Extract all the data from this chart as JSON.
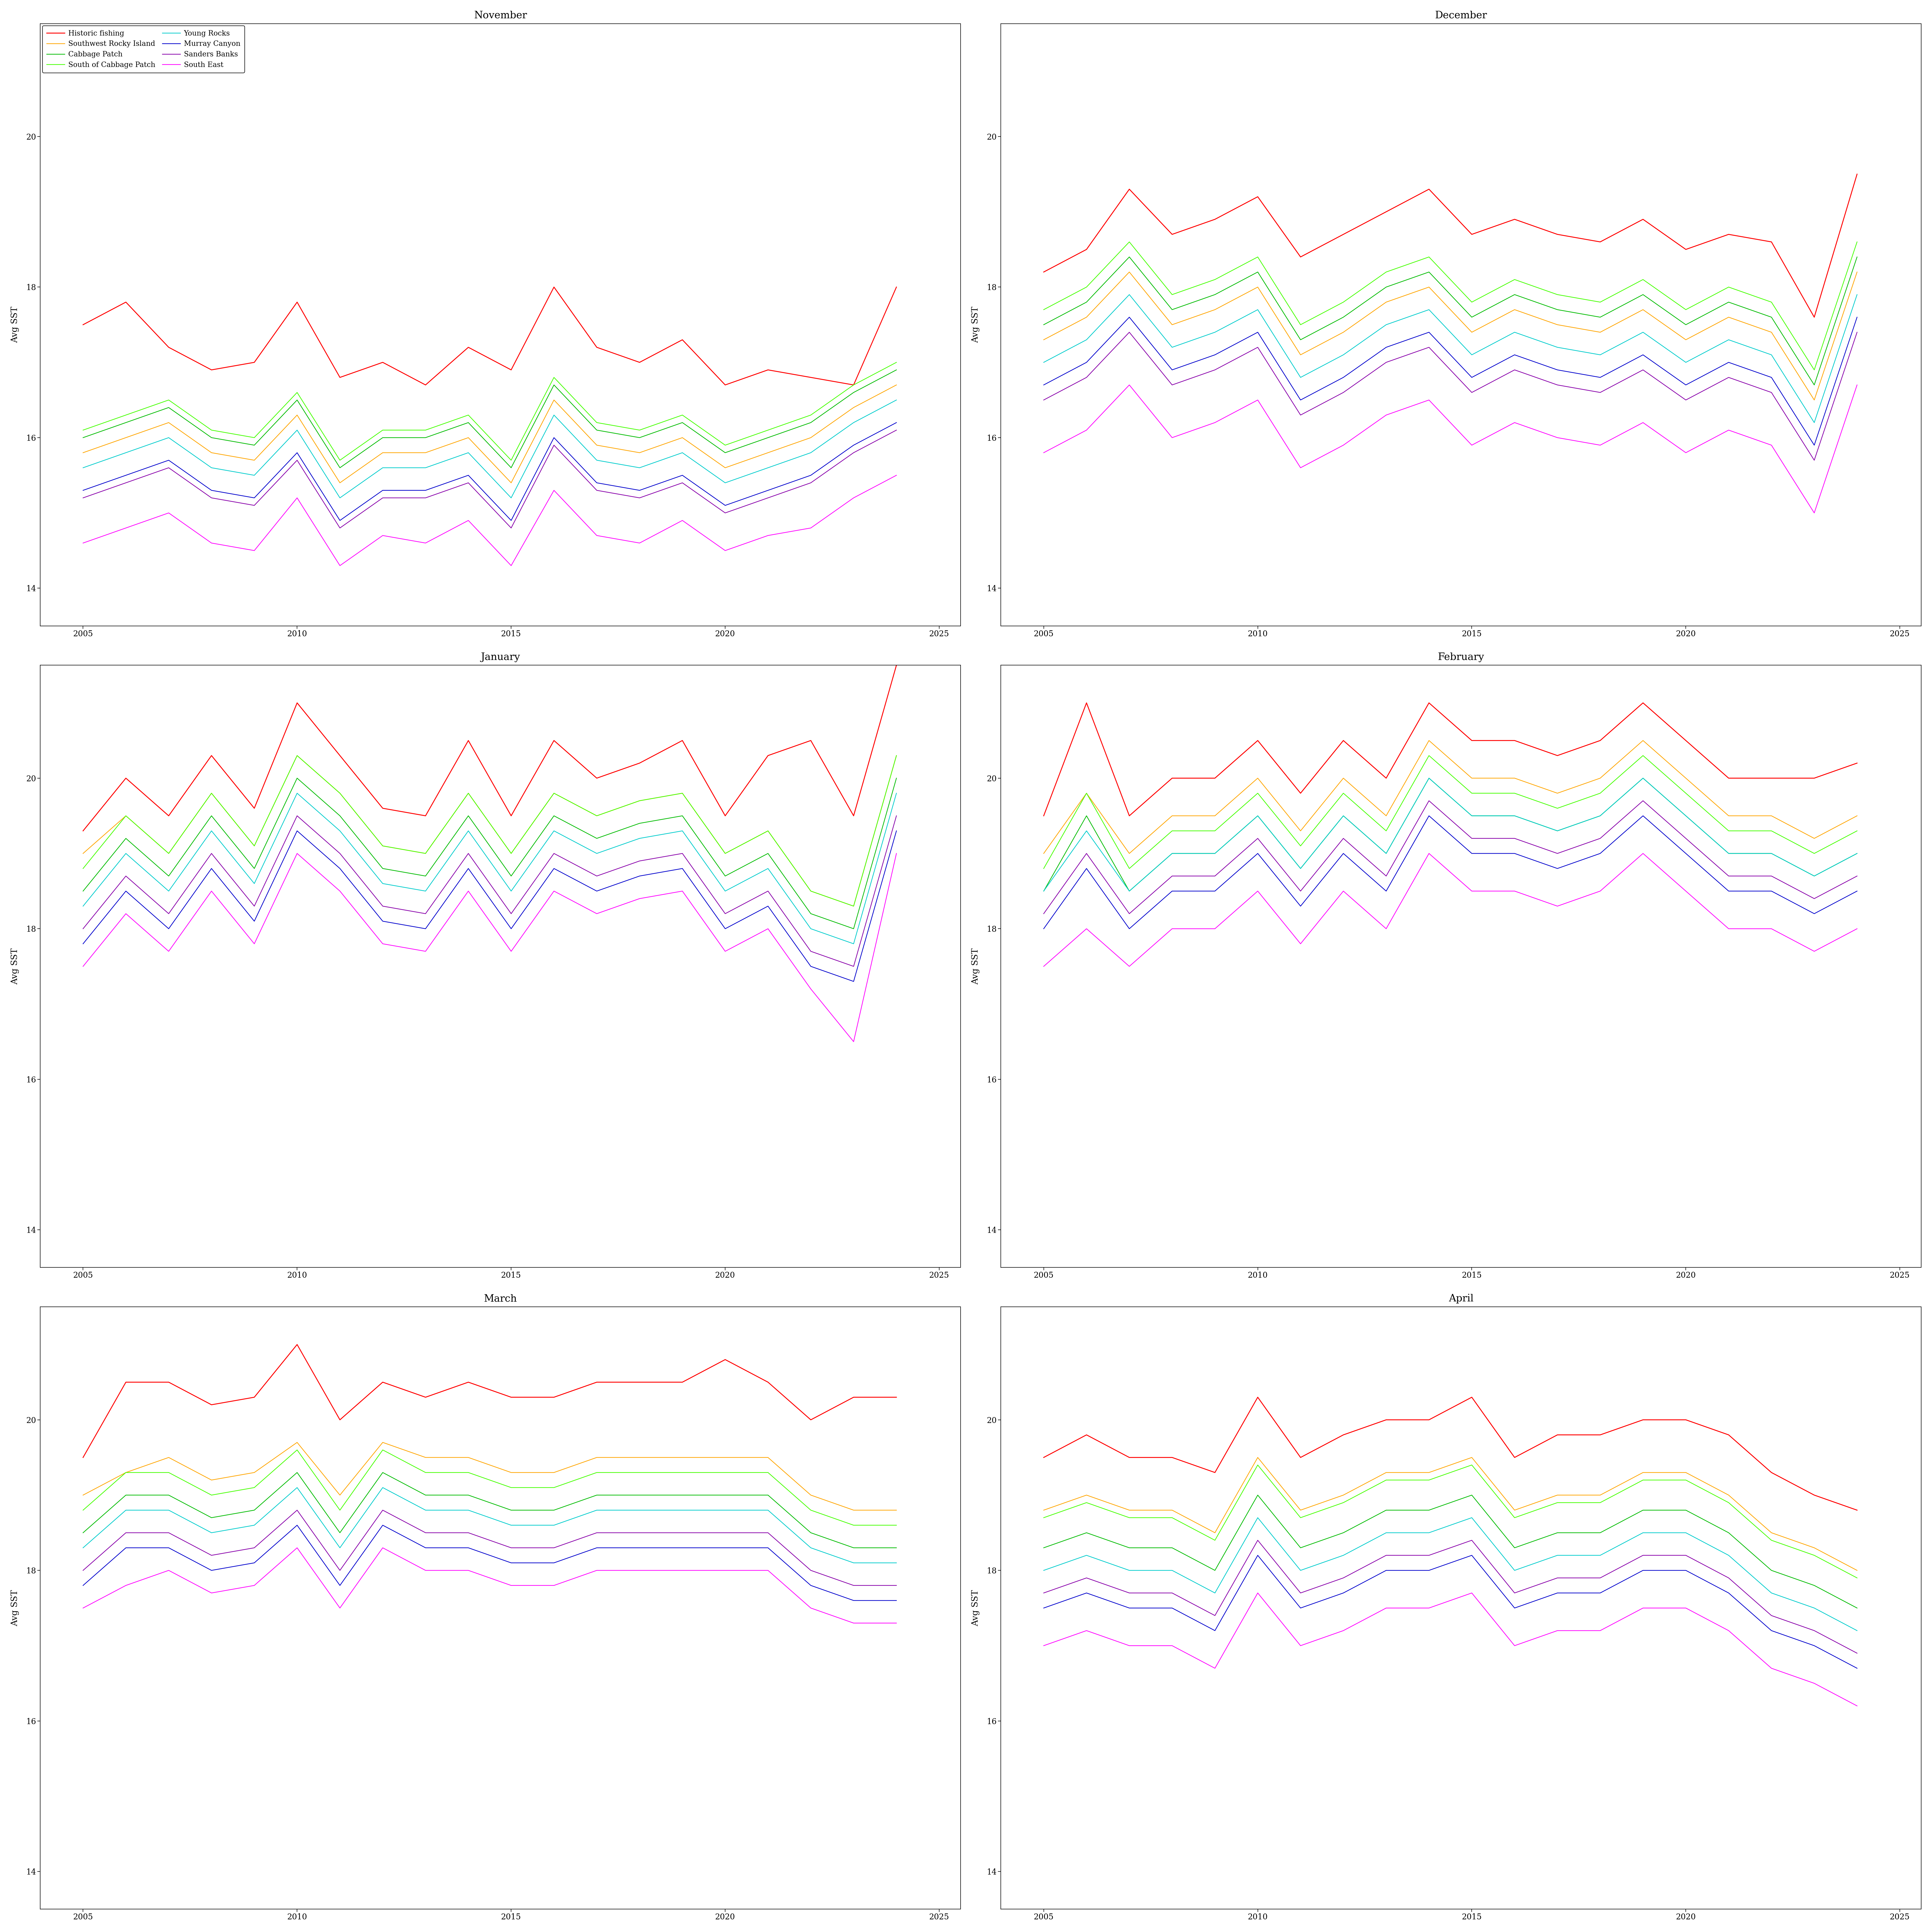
{
  "months": [
    "November",
    "December",
    "January",
    "February",
    "March",
    "April"
  ],
  "years": [
    2005,
    2006,
    2007,
    2008,
    2009,
    2010,
    2011,
    2012,
    2013,
    2014,
    2015,
    2016,
    2017,
    2018,
    2019,
    2020,
    2021,
    2022,
    2023,
    2024
  ],
  "series_names": [
    "Historic fishing",
    "Southwest Rocky Island",
    "Cabbage Patch",
    "South of Cabbage Patch",
    "Young Rocks",
    "Murray Canyon",
    "Sanders Banks",
    "South East"
  ],
  "series_colors": [
    "#FF0000",
    "#FFA500",
    "#00BB00",
    "#44FF00",
    "#00CCCC",
    "#0000CC",
    "#8800AA",
    "#FF00FF"
  ],
  "line_widths": [
    2.5,
    2.0,
    2.0,
    2.0,
    2.0,
    2.0,
    2.0,
    2.0
  ],
  "ylim": [
    13.5,
    21.5
  ],
  "yticks": [
    14,
    16,
    18,
    20
  ],
  "xticks": [
    2005,
    2010,
    2015,
    2020,
    2025
  ],
  "ylabel": "Avg SST",
  "figsize": [
    75.0,
    75.0
  ],
  "title_fontsize": 28,
  "label_fontsize": 24,
  "tick_fontsize": 22,
  "legend_fontsize": 20,
  "data": {
    "November": {
      "Historic fishing": [
        17.5,
        17.8,
        17.2,
        16.9,
        17.0,
        17.8,
        16.8,
        17.0,
        16.7,
        17.2,
        16.9,
        18.0,
        17.2,
        17.0,
        17.3,
        16.7,
        16.9,
        16.8,
        16.7,
        18.0
      ],
      "Southwest Rocky Island": [
        15.8,
        16.0,
        16.2,
        15.8,
        15.7,
        16.3,
        15.4,
        15.8,
        15.8,
        16.0,
        15.4,
        16.5,
        15.9,
        15.8,
        16.0,
        15.6,
        15.8,
        16.0,
        16.4,
        16.7
      ],
      "Cabbage Patch": [
        16.0,
        16.2,
        16.4,
        16.0,
        15.9,
        16.5,
        15.6,
        16.0,
        16.0,
        16.2,
        15.6,
        16.7,
        16.1,
        16.0,
        16.2,
        15.8,
        16.0,
        16.2,
        16.6,
        16.9
      ],
      "South of Cabbage Patch": [
        16.1,
        16.3,
        16.5,
        16.1,
        16.0,
        16.6,
        15.7,
        16.1,
        16.1,
        16.3,
        15.7,
        16.8,
        16.2,
        16.1,
        16.3,
        15.9,
        16.1,
        16.3,
        16.7,
        17.0
      ],
      "Young Rocks": [
        15.6,
        15.8,
        16.0,
        15.6,
        15.5,
        16.1,
        15.2,
        15.6,
        15.6,
        15.8,
        15.2,
        16.3,
        15.7,
        15.6,
        15.8,
        15.4,
        15.6,
        15.8,
        16.2,
        16.5
      ],
      "Murray Canyon": [
        15.3,
        15.5,
        15.7,
        15.3,
        15.2,
        15.8,
        14.9,
        15.3,
        15.3,
        15.5,
        14.9,
        16.0,
        15.4,
        15.3,
        15.5,
        15.1,
        15.3,
        15.5,
        15.9,
        16.2
      ],
      "Sanders Banks": [
        15.2,
        15.4,
        15.6,
        15.2,
        15.1,
        15.7,
        14.8,
        15.2,
        15.2,
        15.4,
        14.8,
        15.9,
        15.3,
        15.2,
        15.4,
        15.0,
        15.2,
        15.4,
        15.8,
        16.1
      ],
      "South East": [
        14.6,
        14.8,
        15.0,
        14.6,
        14.5,
        15.2,
        14.3,
        14.7,
        14.6,
        14.9,
        14.3,
        15.3,
        14.7,
        14.6,
        14.9,
        14.5,
        14.7,
        14.8,
        15.2,
        15.5
      ]
    },
    "December": {
      "Historic fishing": [
        18.2,
        18.5,
        19.3,
        18.7,
        18.9,
        19.2,
        18.4,
        18.7,
        19.0,
        19.3,
        18.7,
        18.9,
        18.7,
        18.6,
        18.9,
        18.5,
        18.7,
        18.6,
        17.6,
        19.5
      ],
      "Southwest Rocky Island": [
        17.3,
        17.6,
        18.2,
        17.5,
        17.7,
        18.0,
        17.1,
        17.4,
        17.8,
        18.0,
        17.4,
        17.7,
        17.5,
        17.4,
        17.7,
        17.3,
        17.6,
        17.4,
        16.5,
        18.2
      ],
      "Cabbage Patch": [
        17.5,
        17.8,
        18.4,
        17.7,
        17.9,
        18.2,
        17.3,
        17.6,
        18.0,
        18.2,
        17.6,
        17.9,
        17.7,
        17.6,
        17.9,
        17.5,
        17.8,
        17.6,
        16.7,
        18.4
      ],
      "South of Cabbage Patch": [
        17.7,
        18.0,
        18.6,
        17.9,
        18.1,
        18.4,
        17.5,
        17.8,
        18.2,
        18.4,
        17.8,
        18.1,
        17.9,
        17.8,
        18.1,
        17.7,
        18.0,
        17.8,
        16.9,
        18.6
      ],
      "Young Rocks": [
        17.0,
        17.3,
        17.9,
        17.2,
        17.4,
        17.7,
        16.8,
        17.1,
        17.5,
        17.7,
        17.1,
        17.4,
        17.2,
        17.1,
        17.4,
        17.0,
        17.3,
        17.1,
        16.2,
        17.9
      ],
      "Murray Canyon": [
        16.7,
        17.0,
        17.6,
        16.9,
        17.1,
        17.4,
        16.5,
        16.8,
        17.2,
        17.4,
        16.8,
        17.1,
        16.9,
        16.8,
        17.1,
        16.7,
        17.0,
        16.8,
        15.9,
        17.6
      ],
      "Sanders Banks": [
        16.5,
        16.8,
        17.4,
        16.7,
        16.9,
        17.2,
        16.3,
        16.6,
        17.0,
        17.2,
        16.6,
        16.9,
        16.7,
        16.6,
        16.9,
        16.5,
        16.8,
        16.6,
        15.7,
        17.4
      ],
      "South East": [
        15.8,
        16.1,
        16.7,
        16.0,
        16.2,
        16.5,
        15.6,
        15.9,
        16.3,
        16.5,
        15.9,
        16.2,
        16.0,
        15.9,
        16.2,
        15.8,
        16.1,
        15.9,
        15.0,
        16.7
      ]
    },
    "January": {
      "Historic fishing": [
        19.3,
        20.0,
        19.5,
        20.3,
        19.6,
        21.0,
        20.3,
        19.6,
        19.5,
        20.5,
        19.5,
        20.5,
        20.0,
        20.2,
        20.5,
        19.5,
        20.3,
        20.5,
        19.5,
        21.5
      ],
      "Southwest Rocky Island": [
        19.0,
        19.5,
        19.0,
        19.8,
        19.1,
        20.3,
        19.8,
        19.1,
        19.0,
        19.8,
        19.0,
        19.8,
        19.5,
        19.7,
        19.8,
        19.0,
        19.3,
        18.5,
        18.3,
        20.3
      ],
      "Cabbage Patch": [
        18.5,
        19.2,
        18.7,
        19.5,
        18.8,
        20.0,
        19.5,
        18.8,
        18.7,
        19.5,
        18.7,
        19.5,
        19.2,
        19.4,
        19.5,
        18.7,
        19.0,
        18.2,
        18.0,
        20.0
      ],
      "South of Cabbage Patch": [
        18.8,
        19.5,
        19.0,
        19.8,
        19.1,
        20.3,
        19.8,
        19.1,
        19.0,
        19.8,
        19.0,
        19.8,
        19.5,
        19.7,
        19.8,
        19.0,
        19.3,
        18.5,
        18.3,
        20.3
      ],
      "Young Rocks": [
        18.3,
        19.0,
        18.5,
        19.3,
        18.6,
        19.8,
        19.3,
        18.6,
        18.5,
        19.3,
        18.5,
        19.3,
        19.0,
        19.2,
        19.3,
        18.5,
        18.8,
        18.0,
        17.8,
        19.8
      ],
      "Murray Canyon": [
        17.8,
        18.5,
        18.0,
        18.8,
        18.1,
        19.3,
        18.8,
        18.1,
        18.0,
        18.8,
        18.0,
        18.8,
        18.5,
        18.7,
        18.8,
        18.0,
        18.3,
        17.5,
        17.3,
        19.3
      ],
      "Sanders Banks": [
        18.0,
        18.7,
        18.2,
        19.0,
        18.3,
        19.5,
        19.0,
        18.3,
        18.2,
        19.0,
        18.2,
        19.0,
        18.7,
        18.9,
        19.0,
        18.2,
        18.5,
        17.7,
        17.5,
        19.5
      ],
      "South East": [
        17.5,
        18.2,
        17.7,
        18.5,
        17.8,
        19.0,
        18.5,
        17.8,
        17.7,
        18.5,
        17.7,
        18.5,
        18.2,
        18.4,
        18.5,
        17.7,
        18.0,
        17.2,
        16.5,
        19.0
      ]
    },
    "February": {
      "Historic fishing": [
        19.5,
        21.0,
        19.5,
        20.0,
        20.0,
        20.5,
        19.8,
        20.5,
        20.0,
        21.0,
        20.5,
        20.5,
        20.3,
        20.5,
        21.0,
        20.5,
        20.0,
        20.0,
        20.0,
        20.2
      ],
      "Southwest Rocky Island": [
        19.0,
        19.8,
        19.0,
        19.5,
        19.5,
        20.0,
        19.3,
        20.0,
        19.5,
        20.5,
        20.0,
        20.0,
        19.8,
        20.0,
        20.5,
        20.0,
        19.5,
        19.5,
        19.2,
        19.5
      ],
      "Cabbage Patch": [
        18.5,
        19.5,
        18.5,
        19.0,
        19.0,
        19.5,
        18.8,
        19.5,
        19.0,
        20.0,
        19.5,
        19.5,
        19.3,
        19.5,
        20.0,
        19.5,
        19.0,
        19.0,
        18.7,
        19.0
      ],
      "South of Cabbage Patch": [
        18.8,
        19.8,
        18.8,
        19.3,
        19.3,
        19.8,
        19.1,
        19.8,
        19.3,
        20.3,
        19.8,
        19.8,
        19.6,
        19.8,
        20.3,
        19.8,
        19.3,
        19.3,
        19.0,
        19.3
      ],
      "Young Rocks": [
        18.5,
        19.3,
        18.5,
        19.0,
        19.0,
        19.5,
        18.8,
        19.5,
        19.0,
        20.0,
        19.5,
        19.5,
        19.3,
        19.5,
        20.0,
        19.5,
        19.0,
        19.0,
        18.7,
        19.0
      ],
      "Murray Canyon": [
        18.0,
        18.8,
        18.0,
        18.5,
        18.5,
        19.0,
        18.3,
        19.0,
        18.5,
        19.5,
        19.0,
        19.0,
        18.8,
        19.0,
        19.5,
        19.0,
        18.5,
        18.5,
        18.2,
        18.5
      ],
      "Sanders Banks": [
        18.2,
        19.0,
        18.2,
        18.7,
        18.7,
        19.2,
        18.5,
        19.2,
        18.7,
        19.7,
        19.2,
        19.2,
        19.0,
        19.2,
        19.7,
        19.2,
        18.7,
        18.7,
        18.4,
        18.7
      ],
      "South East": [
        17.5,
        18.0,
        17.5,
        18.0,
        18.0,
        18.5,
        17.8,
        18.5,
        18.0,
        19.0,
        18.5,
        18.5,
        18.3,
        18.5,
        19.0,
        18.5,
        18.0,
        18.0,
        17.7,
        18.0
      ]
    },
    "March": {
      "Historic fishing": [
        19.5,
        20.5,
        20.5,
        20.2,
        20.3,
        21.0,
        20.0,
        20.5,
        20.3,
        20.5,
        20.3,
        20.3,
        20.5,
        20.5,
        20.5,
        20.8,
        20.5,
        20.0,
        20.3,
        20.3
      ],
      "Southwest Rocky Island": [
        19.0,
        19.3,
        19.5,
        19.2,
        19.3,
        19.7,
        19.0,
        19.7,
        19.5,
        19.5,
        19.3,
        19.3,
        19.5,
        19.5,
        19.5,
        19.5,
        19.5,
        19.0,
        18.8,
        18.8
      ],
      "Cabbage Patch": [
        18.5,
        19.0,
        19.0,
        18.7,
        18.8,
        19.3,
        18.5,
        19.3,
        19.0,
        19.0,
        18.8,
        18.8,
        19.0,
        19.0,
        19.0,
        19.0,
        19.0,
        18.5,
        18.3,
        18.3
      ],
      "South of Cabbage Patch": [
        18.8,
        19.3,
        19.3,
        19.0,
        19.1,
        19.6,
        18.8,
        19.6,
        19.3,
        19.3,
        19.1,
        19.1,
        19.3,
        19.3,
        19.3,
        19.3,
        19.3,
        18.8,
        18.6,
        18.6
      ],
      "Young Rocks": [
        18.3,
        18.8,
        18.8,
        18.5,
        18.6,
        19.1,
        18.3,
        19.1,
        18.8,
        18.8,
        18.6,
        18.6,
        18.8,
        18.8,
        18.8,
        18.8,
        18.8,
        18.3,
        18.1,
        18.1
      ],
      "Murray Canyon": [
        17.8,
        18.3,
        18.3,
        18.0,
        18.1,
        18.6,
        17.8,
        18.6,
        18.3,
        18.3,
        18.1,
        18.1,
        18.3,
        18.3,
        18.3,
        18.3,
        18.3,
        17.8,
        17.6,
        17.6
      ],
      "Sanders Banks": [
        18.0,
        18.5,
        18.5,
        18.2,
        18.3,
        18.8,
        18.0,
        18.8,
        18.5,
        18.5,
        18.3,
        18.3,
        18.5,
        18.5,
        18.5,
        18.5,
        18.5,
        18.0,
        17.8,
        17.8
      ],
      "South East": [
        17.5,
        17.8,
        18.0,
        17.7,
        17.8,
        18.3,
        17.5,
        18.3,
        18.0,
        18.0,
        17.8,
        17.8,
        18.0,
        18.0,
        18.0,
        18.0,
        18.0,
        17.5,
        17.3,
        17.3
      ]
    },
    "April": {
      "Historic fishing": [
        19.5,
        19.8,
        19.5,
        19.5,
        19.3,
        20.3,
        19.5,
        19.8,
        20.0,
        20.0,
        20.3,
        19.5,
        19.8,
        19.8,
        20.0,
        20.0,
        19.8,
        19.3,
        19.0,
        18.8
      ],
      "Southwest Rocky Island": [
        18.8,
        19.0,
        18.8,
        18.8,
        18.5,
        19.5,
        18.8,
        19.0,
        19.3,
        19.3,
        19.5,
        18.8,
        19.0,
        19.0,
        19.3,
        19.3,
        19.0,
        18.5,
        18.3,
        18.0
      ],
      "Cabbage Patch": [
        18.3,
        18.5,
        18.3,
        18.3,
        18.0,
        19.0,
        18.3,
        18.5,
        18.8,
        18.8,
        19.0,
        18.3,
        18.5,
        18.5,
        18.8,
        18.8,
        18.5,
        18.0,
        17.8,
        17.5
      ],
      "South of Cabbage Patch": [
        18.7,
        18.9,
        18.7,
        18.7,
        18.4,
        19.4,
        18.7,
        18.9,
        19.2,
        19.2,
        19.4,
        18.7,
        18.9,
        18.9,
        19.2,
        19.2,
        18.9,
        18.4,
        18.2,
        17.9
      ],
      "Young Rocks": [
        18.0,
        18.2,
        18.0,
        18.0,
        17.7,
        18.7,
        18.0,
        18.2,
        18.5,
        18.5,
        18.7,
        18.0,
        18.2,
        18.2,
        18.5,
        18.5,
        18.2,
        17.7,
        17.5,
        17.2
      ],
      "Murray Canyon": [
        17.5,
        17.7,
        17.5,
        17.5,
        17.2,
        18.2,
        17.5,
        17.7,
        18.0,
        18.0,
        18.2,
        17.5,
        17.7,
        17.7,
        18.0,
        18.0,
        17.7,
        17.2,
        17.0,
        16.7
      ],
      "Sanders Banks": [
        17.7,
        17.9,
        17.7,
        17.7,
        17.4,
        18.4,
        17.7,
        17.9,
        18.2,
        18.2,
        18.4,
        17.7,
        17.9,
        17.9,
        18.2,
        18.2,
        17.9,
        17.4,
        17.2,
        16.9
      ],
      "South East": [
        17.0,
        17.2,
        17.0,
        17.0,
        16.7,
        17.7,
        17.0,
        17.2,
        17.5,
        17.5,
        17.7,
        17.0,
        17.2,
        17.2,
        17.5,
        17.5,
        17.2,
        16.7,
        16.5,
        16.2
      ]
    }
  }
}
